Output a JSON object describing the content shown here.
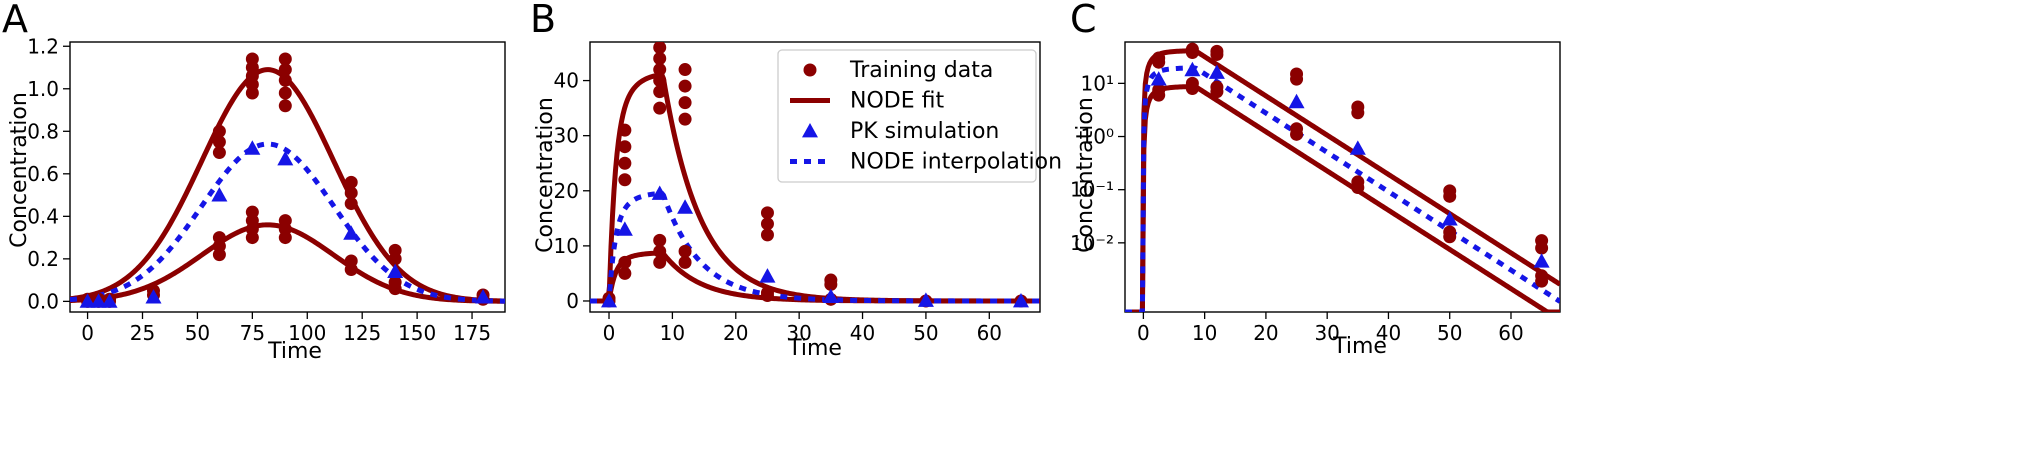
{
  "chart_data": [
    {
      "panel": "A",
      "type": "scatter",
      "xlabel": "Time",
      "ylabel": "Concentration",
      "xlim": [
        -8,
        190
      ],
      "ylim": [
        -0.05,
        1.22
      ],
      "yscale": "linear",
      "xticks": [
        0,
        25,
        50,
        75,
        100,
        125,
        150,
        175
      ],
      "yticks": [
        0.0,
        0.2,
        0.4,
        0.6,
        0.8,
        1.0,
        1.2
      ],
      "ytick_labels": [
        "0.0",
        "0.2",
        "0.4",
        "0.6",
        "0.8",
        "1.0",
        "1.2"
      ],
      "colors": {
        "training": "#8b0000",
        "pk": "#1515e6"
      },
      "fit_model": {
        "type": "gaussian",
        "center": 82,
        "width": 30,
        "high": 1.09,
        "low": 0.36,
        "mid": 0.74
      },
      "series": [
        {
          "name": "Training data",
          "style": "points",
          "points": [
            [
              0,
              0
            ],
            [
              0,
              0.01
            ],
            [
              5,
              0
            ],
            [
              5,
              0.01
            ],
            [
              10,
              0
            ],
            [
              10,
              0.01
            ],
            [
              30,
              0.03
            ],
            [
              30,
              0.05
            ],
            [
              60,
              0.22
            ],
            [
              60,
              0.26
            ],
            [
              60,
              0.3
            ],
            [
              60,
              0.7
            ],
            [
              60,
              0.75
            ],
            [
              60,
              0.8
            ],
            [
              75,
              0.3
            ],
            [
              75,
              0.34
            ],
            [
              75,
              0.38
            ],
            [
              75,
              0.42
            ],
            [
              75,
              0.98
            ],
            [
              75,
              1.02
            ],
            [
              75,
              1.06
            ],
            [
              75,
              1.1
            ],
            [
              75,
              1.14
            ],
            [
              90,
              0.3
            ],
            [
              90,
              0.34
            ],
            [
              90,
              0.38
            ],
            [
              90,
              0.92
            ],
            [
              90,
              0.98
            ],
            [
              90,
              1.04
            ],
            [
              90,
              1.09
            ],
            [
              90,
              1.14
            ],
            [
              120,
              0.15
            ],
            [
              120,
              0.19
            ],
            [
              120,
              0.46
            ],
            [
              120,
              0.51
            ],
            [
              120,
              0.56
            ],
            [
              140,
              0.06
            ],
            [
              140,
              0.09
            ],
            [
              140,
              0.2
            ],
            [
              140,
              0.24
            ],
            [
              180,
              0.01
            ],
            [
              180,
              0.03
            ]
          ]
        },
        {
          "name": "NODE fit",
          "style": "solid-line"
        },
        {
          "name": "PK simulation",
          "style": "triangles",
          "points": [
            [
              0,
              0
            ],
            [
              5,
              0
            ],
            [
              10,
              0
            ],
            [
              30,
              0.02
            ],
            [
              60,
              0.5
            ],
            [
              75,
              0.72
            ],
            [
              90,
              0.67
            ],
            [
              120,
              0.32
            ],
            [
              140,
              0.14
            ],
            [
              180,
              0.02
            ]
          ]
        },
        {
          "name": "NODE interpolation",
          "style": "dotted-line"
        }
      ]
    },
    {
      "panel": "B",
      "type": "scatter",
      "xlabel": "Time",
      "ylabel": "Concentration",
      "xlim": [
        -3,
        68
      ],
      "ylim": [
        -2,
        47
      ],
      "yscale": "linear",
      "xticks": [
        0,
        10,
        20,
        30,
        40,
        50,
        60
      ],
      "yticks": [
        0,
        10,
        20,
        30,
        40
      ],
      "ytick_labels": [
        "0",
        "10",
        "20",
        "30",
        "40"
      ],
      "colors": {
        "training": "#8b0000",
        "pk": "#1515e6"
      },
      "fit_model": {
        "type": "absorption",
        "peak_time": 8.5,
        "high": 41,
        "low": 8.7,
        "mid": 19.5,
        "elimination_rate": 0.17
      },
      "series": [
        {
          "name": "Training data",
          "style": "points",
          "points": [
            [
              0,
              0
            ],
            [
              0,
              0.5
            ],
            [
              2.5,
              5
            ],
            [
              2.5,
              7
            ],
            [
              2.5,
              22
            ],
            [
              2.5,
              25
            ],
            [
              2.5,
              28
            ],
            [
              2.5,
              31
            ],
            [
              8,
              7
            ],
            [
              8,
              9
            ],
            [
              8,
              11
            ],
            [
              8,
              35
            ],
            [
              8,
              38
            ],
            [
              8,
              40
            ],
            [
              8,
              42
            ],
            [
              8,
              44
            ],
            [
              8,
              46
            ],
            [
              12,
              7
            ],
            [
              12,
              9
            ],
            [
              12,
              33
            ],
            [
              12,
              36
            ],
            [
              12,
              39
            ],
            [
              12,
              42
            ],
            [
              25,
              1
            ],
            [
              25,
              1.5
            ],
            [
              25,
              12
            ],
            [
              25,
              14
            ],
            [
              25,
              16
            ],
            [
              35,
              0.3
            ],
            [
              35,
              3
            ],
            [
              35,
              3.8
            ],
            [
              50,
              0
            ],
            [
              65,
              0
            ]
          ]
        },
        {
          "name": "NODE fit",
          "style": "solid-line"
        },
        {
          "name": "PK simulation",
          "style": "triangles",
          "points": [
            [
              0,
              0
            ],
            [
              2.5,
              13
            ],
            [
              8,
              19.5
            ],
            [
              12,
              17
            ],
            [
              25,
              4.5
            ],
            [
              35,
              0.8
            ],
            [
              50,
              0.1
            ],
            [
              65,
              0
            ]
          ]
        },
        {
          "name": "NODE interpolation",
          "style": "dotted-line"
        }
      ],
      "legend": {
        "position": "top-right",
        "entries": [
          "Training data",
          "NODE fit",
          "PK simulation",
          "NODE interpolation"
        ]
      }
    },
    {
      "panel": "C",
      "type": "scatter",
      "xlabel": "Time",
      "ylabel": "Concentration",
      "xlim": [
        -3,
        68
      ],
      "ylim": [
        0.0005,
        60
      ],
      "yscale": "log",
      "xticks": [
        0,
        10,
        20,
        30,
        40,
        50,
        60
      ],
      "yticks": [
        0.01,
        0.1,
        1,
        10
      ],
      "ytick_labels": [
        "10⁻²",
        "10⁻¹",
        "10⁰",
        "10¹"
      ],
      "colors": {
        "training": "#8b0000",
        "pk": "#1515e6"
      },
      "fit_model": {
        "type": "absorption",
        "peak_time": 8.5,
        "high": 41,
        "low": 8.7,
        "mid": 19.5,
        "elimination_rate": 0.17
      },
      "series": [
        {
          "name": "Training data",
          "style": "points",
          "points": [
            [
              2.5,
              6
            ],
            [
              2.5,
              7.5
            ],
            [
              2.5,
              25
            ],
            [
              2.5,
              30
            ],
            [
              8,
              8
            ],
            [
              8,
              10
            ],
            [
              8,
              38
            ],
            [
              8,
              44
            ],
            [
              12,
              7
            ],
            [
              12,
              8.5
            ],
            [
              12,
              35
            ],
            [
              12,
              40
            ],
            [
              25,
              1.1
            ],
            [
              25,
              1.4
            ],
            [
              25,
              12
            ],
            [
              25,
              15
            ],
            [
              35,
              0.11
            ],
            [
              35,
              0.14
            ],
            [
              35,
              2.8
            ],
            [
              35,
              3.6
            ],
            [
              50,
              0.013
            ],
            [
              50,
              0.016
            ],
            [
              50,
              0.075
            ],
            [
              50,
              0.095
            ],
            [
              65,
              0.0019
            ],
            [
              65,
              0.0024
            ],
            [
              65,
              0.008
            ],
            [
              65,
              0.011
            ]
          ]
        },
        {
          "name": "NODE fit",
          "style": "solid-line"
        },
        {
          "name": "PK simulation",
          "style": "triangles",
          "points": [
            [
              2.5,
              12
            ],
            [
              8,
              18
            ],
            [
              12,
              16
            ],
            [
              25,
              4.5
            ],
            [
              35,
              0.6
            ],
            [
              50,
              0.028
            ],
            [
              65,
              0.0045
            ]
          ]
        },
        {
          "name": "NODE interpolation",
          "style": "dotted-line"
        }
      ]
    }
  ]
}
